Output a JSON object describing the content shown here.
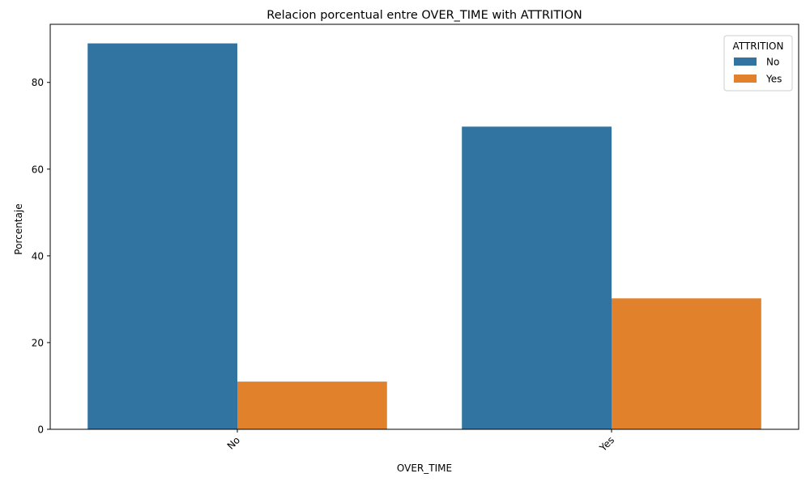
{
  "chart_data": {
    "type": "bar",
    "title": "Relacion porcentual entre OVER_TIME with ATTRITION",
    "xlabel": "OVER_TIME",
    "ylabel": "Porcentaje",
    "categories": [
      "No",
      "Yes"
    ],
    "series": [
      {
        "name": "No",
        "values": [
          89.0,
          69.8
        ],
        "color": "#3274a1"
      },
      {
        "name": "Yes",
        "values": [
          11.0,
          30.2
        ],
        "color": "#e1812c"
      }
    ],
    "ylim": [
      0,
      93.4
    ],
    "yticks": [
      0,
      20,
      40,
      60,
      80
    ],
    "legend": {
      "title": "ATTRITION",
      "position": "top-right"
    },
    "grid": false
  }
}
